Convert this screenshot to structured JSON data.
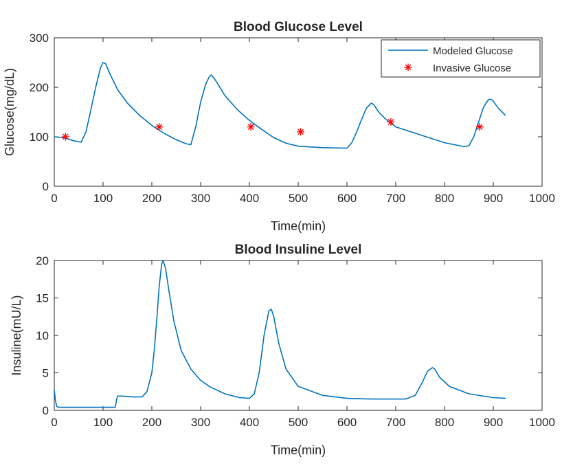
{
  "chart_data": [
    {
      "type": "line",
      "title": "Blood Glucose Level",
      "xlabel": "Time(min)",
      "ylabel": "Glucose(mg/dL)",
      "xlim": [
        0,
        1000
      ],
      "ylim": [
        0,
        300
      ],
      "xticks": [
        "0",
        "100",
        "200",
        "300",
        "400",
        "500",
        "600",
        "700",
        "800",
        "900",
        "1000"
      ],
      "yticks": [
        "0",
        "100",
        "200",
        "300"
      ],
      "grid": false,
      "legend_position": "top-right",
      "series": [
        {
          "name": "Modeled Glucose",
          "kind": "line",
          "color": "#0072BD",
          "x": [
            0,
            20,
            40,
            55,
            65,
            75,
            85,
            95,
            100,
            105,
            115,
            130,
            150,
            175,
            200,
            225,
            250,
            270,
            280,
            290,
            300,
            310,
            318,
            322,
            330,
            350,
            375,
            400,
            425,
            450,
            475,
            500,
            550,
            600,
            610,
            620,
            630,
            640,
            650,
            655,
            665,
            680,
            700,
            750,
            800,
            840,
            850,
            860,
            870,
            880,
            890,
            895,
            900,
            910,
            925
          ],
          "y": [
            100,
            98,
            92,
            89,
            110,
            155,
            200,
            240,
            250,
            248,
            225,
            195,
            168,
            143,
            123,
            107,
            94,
            86,
            84,
            120,
            170,
            205,
            222,
            225,
            215,
            183,
            155,
            133,
            115,
            98,
            87,
            81,
            78,
            77,
            88,
            110,
            135,
            158,
            168,
            165,
            150,
            135,
            120,
            104,
            88,
            80,
            82,
            100,
            130,
            160,
            175,
            176,
            172,
            158,
            143
          ]
        },
        {
          "name": "Invasive Glucose",
          "kind": "scatter",
          "marker": "asterisk",
          "color": "#FF0000",
          "x": [
            23,
            215,
            403,
            505,
            690,
            872
          ],
          "y": [
            100,
            120,
            120,
            110,
            130,
            120
          ]
        }
      ]
    },
    {
      "type": "line",
      "title": "Blood Insuline Level",
      "xlabel": "Time(min)",
      "ylabel": "Insuline(mU/L)",
      "xlim": [
        0,
        1000
      ],
      "ylim": [
        0,
        20
      ],
      "xticks": [
        "0",
        "100",
        "200",
        "300",
        "400",
        "500",
        "600",
        "700",
        "800",
        "900",
        "1000"
      ],
      "yticks": [
        "0",
        "5",
        "10",
        "15",
        "20"
      ],
      "grid": false,
      "series": [
        {
          "kind": "line",
          "color": "#0072BD",
          "x": [
            0,
            2,
            5,
            10,
            20,
            50,
            100,
            120,
            125,
            128,
            130,
            140,
            160,
            180,
            190,
            200,
            205,
            210,
            215,
            220,
            223,
            228,
            235,
            245,
            260,
            280,
            300,
            320,
            350,
            380,
            400,
            410,
            420,
            430,
            440,
            445,
            450,
            460,
            475,
            500,
            550,
            600,
            650,
            700,
            720,
            740,
            755,
            765,
            775,
            780,
            790,
            810,
            850,
            900,
            925
          ],
          "y": [
            2.8,
            1.5,
            0.5,
            0.4,
            0.4,
            0.4,
            0.4,
            0.4,
            0.4,
            1.5,
            1.9,
            1.9,
            1.8,
            1.8,
            2.5,
            5,
            8,
            12,
            16.5,
            19.5,
            20,
            19,
            16,
            12,
            8,
            5.5,
            4,
            3.1,
            2.2,
            1.7,
            1.6,
            2.2,
            5,
            10,
            13.3,
            13.5,
            12.5,
            9,
            5.5,
            3.2,
            2,
            1.6,
            1.5,
            1.5,
            1.5,
            2,
            3.8,
            5.2,
            5.7,
            5.5,
            4.4,
            3.2,
            2.2,
            1.7,
            1.6
          ]
        }
      ]
    }
  ]
}
